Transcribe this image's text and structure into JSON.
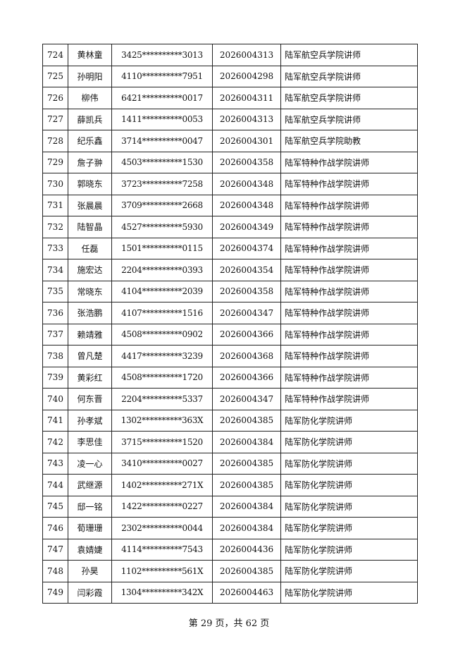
{
  "table": {
    "rows": [
      [
        "724",
        "黄林童",
        "3425**********3013",
        "2026004313",
        "陆军航空兵学院讲师"
      ],
      [
        "725",
        "孙明阳",
        "4110**********7951",
        "2026004298",
        "陆军航空兵学院讲师"
      ],
      [
        "726",
        "柳伟",
        "6421**********0017",
        "2026004311",
        "陆军航空兵学院讲师"
      ],
      [
        "727",
        "薛凯兵",
        "1411**********0053",
        "2026004313",
        "陆军航空兵学院讲师"
      ],
      [
        "728",
        "纪乐鑫",
        "3714**********0047",
        "2026004301",
        "陆军航空兵学院助教"
      ],
      [
        "729",
        "詹子翀",
        "4503**********1530",
        "2026004358",
        "陆军特种作战学院讲师"
      ],
      [
        "730",
        "郭晓东",
        "3723**********7258",
        "2026004348",
        "陆军特种作战学院讲师"
      ],
      [
        "731",
        "张晨晨",
        "3709**********2668",
        "2026004348",
        "陆军特种作战学院讲师"
      ],
      [
        "732",
        "陆智晶",
        "4527**********5930",
        "2026004349",
        "陆军特种作战学院讲师"
      ],
      [
        "733",
        "任磊",
        "1501**********0115",
        "2026004374",
        "陆军特种作战学院讲师"
      ],
      [
        "734",
        "施宏达",
        "2204**********0393",
        "2026004354",
        "陆军特种作战学院讲师"
      ],
      [
        "735",
        "常晓东",
        "4104**********2039",
        "2026004358",
        "陆军特种作战学院讲师"
      ],
      [
        "736",
        "张浩鹏",
        "4107**********1516",
        "2026004347",
        "陆军特种作战学院讲师"
      ],
      [
        "737",
        "赖靖雅",
        "4508**********0902",
        "2026004366",
        "陆军特种作战学院讲师"
      ],
      [
        "738",
        "曾凡楚",
        "4417**********3239",
        "2026004368",
        "陆军特种作战学院讲师"
      ],
      [
        "739",
        "黄彩红",
        "4508**********1720",
        "2026004366",
        "陆军特种作战学院讲师"
      ],
      [
        "740",
        "何东晋",
        "2204**********5337",
        "2026004347",
        "陆军特种作战学院讲师"
      ],
      [
        "741",
        "孙孝斌",
        "1302**********363X",
        "2026004385",
        "陆军防化学院讲师"
      ],
      [
        "742",
        "李思佳",
        "3715**********1520",
        "2026004384",
        "陆军防化学院讲师"
      ],
      [
        "743",
        "凌一心",
        "3410**********0027",
        "2026004385",
        "陆军防化学院讲师"
      ],
      [
        "744",
        "武继源",
        "1402**********271X",
        "2026004385",
        "陆军防化学院讲师"
      ],
      [
        "745",
        "邸一铭",
        "1422**********0227",
        "2026004384",
        "陆军防化学院讲师"
      ],
      [
        "746",
        "荀珊珊",
        "2302**********0044",
        "2026004384",
        "陆军防化学院讲师"
      ],
      [
        "747",
        "袁婧婕",
        "4114**********7543",
        "2026004436",
        "陆军防化学院讲师"
      ],
      [
        "748",
        "孙昊",
        "1102**********561X",
        "2026004385",
        "陆军防化学院讲师"
      ],
      [
        "749",
        "闫彩霞",
        "1304**********342X",
        "2026004463",
        "陆军防化学院讲师"
      ]
    ]
  },
  "footer": {
    "page_label": "第 29 页，共 62 页"
  }
}
